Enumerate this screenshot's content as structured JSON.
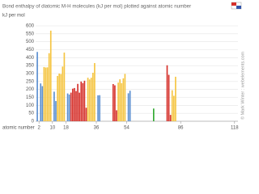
{
  "chart_data": {
    "type": "bar",
    "title": "Bond enthalpy of diatomic M-H molecules (kJ per mol) plotted against atomic number",
    "y_label": "kJ per mol",
    "x_label": "atomic number",
    "watermark": "© Mark Winter : webelements.com",
    "x": [
      1,
      3,
      4,
      5,
      6,
      7,
      8,
      9,
      11,
      12,
      13,
      14,
      15,
      16,
      17,
      19,
      20,
      21,
      22,
      23,
      24,
      25,
      26,
      27,
      28,
      29,
      30,
      31,
      32,
      33,
      34,
      35,
      37,
      38,
      46,
      47,
      48,
      49,
      50,
      51,
      52,
      53,
      55,
      56,
      70,
      78,
      79,
      80,
      81,
      82,
      83
    ],
    "values": [
      436,
      238,
      221,
      341,
      338,
      339,
      428,
      570,
      186,
      127,
      285,
      300,
      297,
      344,
      432,
      175,
      168,
      180,
      205,
      209,
      190,
      235,
      180,
      250,
      240,
      255,
      85,
      274,
      263,
      274,
      305,
      366,
      163,
      164,
      234,
      226,
      69,
      243,
      264,
      240,
      270,
      298,
      176,
      192,
      80,
      352,
      292,
      40,
      195,
      160,
      280
    ],
    "colors": [
      "#5b8fd0",
      "#5b8fd0",
      "#5b8fd0",
      "#f5c542",
      "#f5c542",
      "#f5c542",
      "#f5c542",
      "#f5c542",
      "#5b8fd0",
      "#5b8fd0",
      "#f5c542",
      "#f5c542",
      "#f5c542",
      "#f5c542",
      "#f5c542",
      "#5b8fd0",
      "#5b8fd0",
      "#d6312b",
      "#d6312b",
      "#d6312b",
      "#d6312b",
      "#d6312b",
      "#d6312b",
      "#d6312b",
      "#d6312b",
      "#d6312b",
      "#d6312b",
      "#f5c542",
      "#f5c542",
      "#f5c542",
      "#f5c542",
      "#f5c542",
      "#5b8fd0",
      "#5b8fd0",
      "#d6312b",
      "#d6312b",
      "#d6312b",
      "#f5c542",
      "#f5c542",
      "#f5c542",
      "#f5c542",
      "#f5c542",
      "#5b8fd0",
      "#5b8fd0",
      "#33aa33",
      "#d6312b",
      "#d6312b",
      "#d6312b",
      "#f5c542",
      "#f5c542",
      "#f5c542"
    ],
    "xlim": [
      0,
      120
    ],
    "xticks": [
      2,
      10,
      18,
      36,
      54,
      86,
      118
    ],
    "ylim": [
      0,
      600
    ],
    "yticks": [
      0,
      50,
      100,
      150,
      200,
      250,
      300,
      350,
      400,
      450,
      500,
      550,
      600
    ],
    "grid": true
  }
}
